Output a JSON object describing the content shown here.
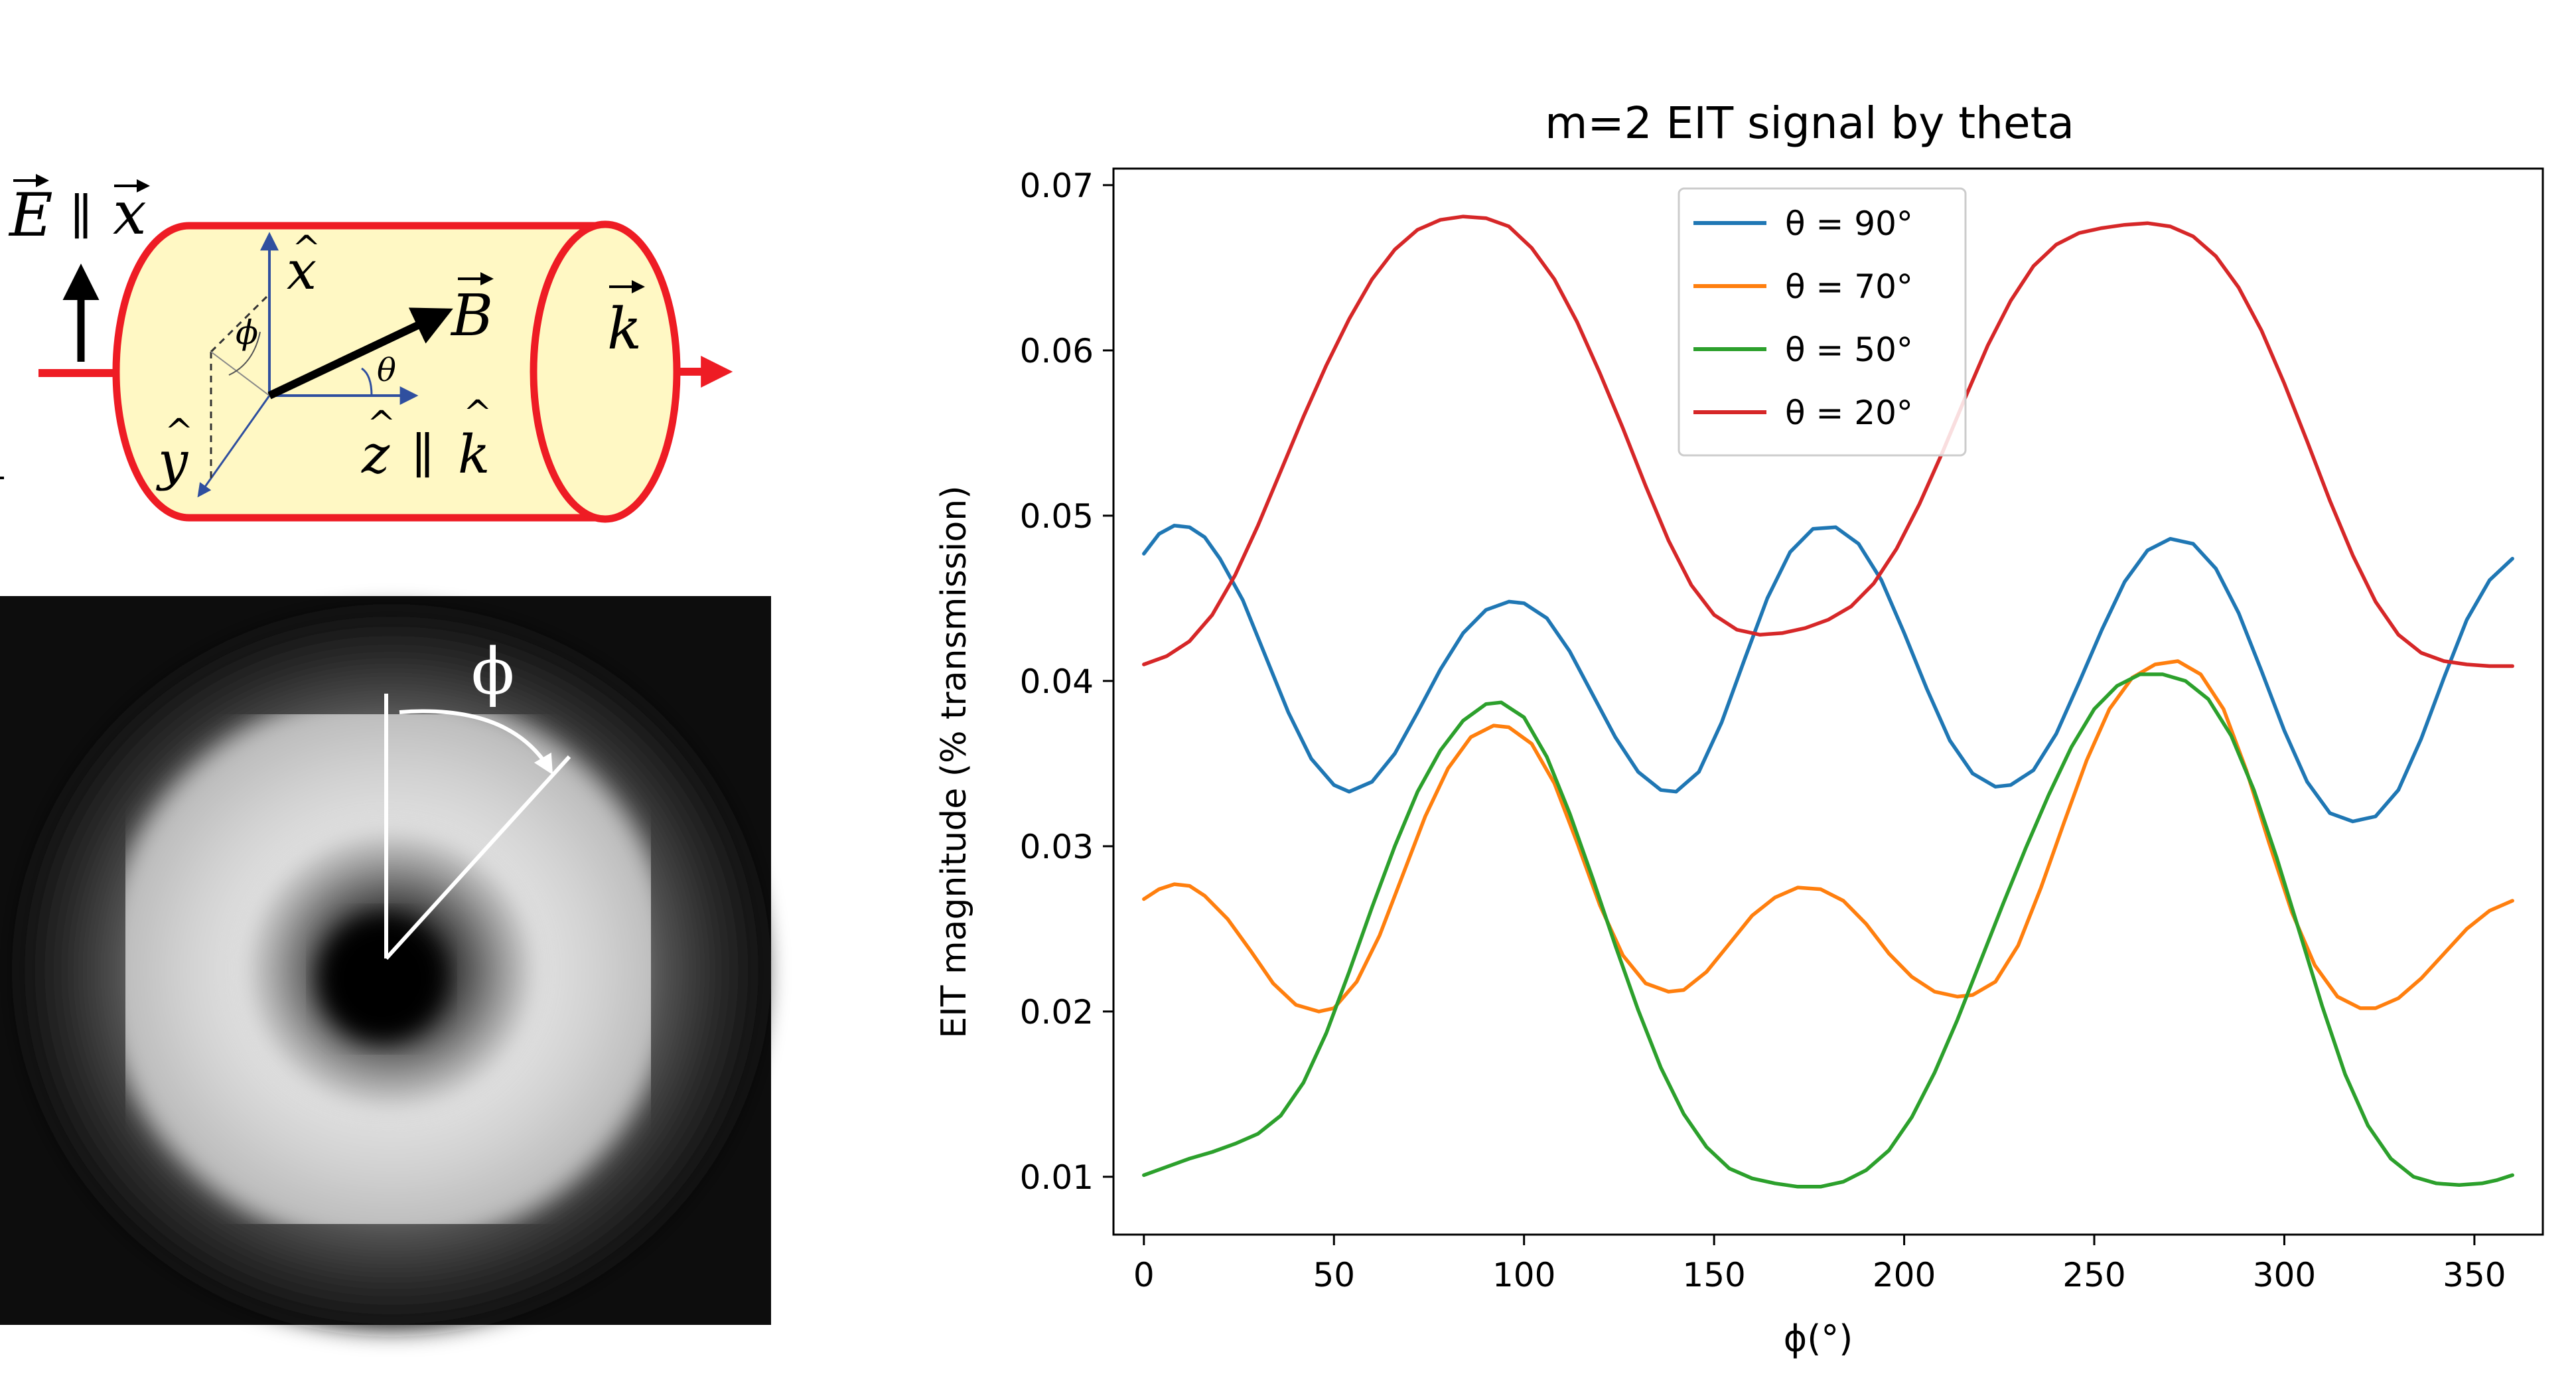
{
  "diagram": {
    "e_label": "E",
    "parallel": "∥",
    "x_label": "x",
    "x_hat": "x",
    "y_hat": "y",
    "z_hat": "z",
    "k_hat": "k",
    "b_label": "B",
    "k_label": "k",
    "phi_label": "ϕ",
    "theta_label": "θ"
  },
  "beam_image": {
    "phi_label": "ϕ"
  },
  "colors": {
    "blue": "#1f77b4",
    "orange": "#ff7f0e",
    "green": "#2ca02c",
    "red": "#d62728",
    "beam_red": "#ee1c24",
    "cylinder_fill": "#fff8c4",
    "axis_blue": "#2f4f9f"
  },
  "chart_data": {
    "type": "line",
    "title": "m=2 EIT signal by theta",
    "xlabel": "ϕ(°)",
    "ylabel": "EIT magnitude (% transmission)",
    "xlim": [
      -8,
      368
    ],
    "ylim": [
      0.0065,
      0.071
    ],
    "xticks": [
      0,
      50,
      100,
      150,
      200,
      250,
      300,
      350
    ],
    "yticks": [
      0.01,
      0.02,
      0.03,
      0.04,
      0.05,
      0.06,
      0.07
    ],
    "xtick_labels": [
      "0",
      "50",
      "100",
      "150",
      "200",
      "250",
      "300",
      "350"
    ],
    "ytick_labels": [
      "0.01",
      "0.02",
      "0.03",
      "0.04",
      "0.05",
      "0.06",
      "0.07"
    ],
    "grid": false,
    "legend_position": "top-center",
    "series": [
      {
        "name": "θ = 90°",
        "color": "#1f77b4",
        "points": [
          [
            0,
            0.0477
          ],
          [
            4,
            0.0489
          ],
          [
            8,
            0.0494
          ],
          [
            12,
            0.0493
          ],
          [
            16,
            0.0487
          ],
          [
            20,
            0.0474
          ],
          [
            26,
            0.0449
          ],
          [
            32,
            0.0415
          ],
          [
            38,
            0.0381
          ],
          [
            44,
            0.0353
          ],
          [
            50,
            0.0337
          ],
          [
            54,
            0.0333
          ],
          [
            60,
            0.0339
          ],
          [
            66,
            0.0356
          ],
          [
            72,
            0.0381
          ],
          [
            78,
            0.0407
          ],
          [
            84,
            0.0429
          ],
          [
            90,
            0.0443
          ],
          [
            96,
            0.0448
          ],
          [
            100,
            0.0447
          ],
          [
            106,
            0.0438
          ],
          [
            112,
            0.0418
          ],
          [
            118,
            0.0392
          ],
          [
            124,
            0.0366
          ],
          [
            130,
            0.0345
          ],
          [
            136,
            0.0334
          ],
          [
            140,
            0.0333
          ],
          [
            146,
            0.0345
          ],
          [
            152,
            0.0375
          ],
          [
            158,
            0.0413
          ],
          [
            164,
            0.045
          ],
          [
            170,
            0.0478
          ],
          [
            176,
            0.0492
          ],
          [
            182,
            0.0493
          ],
          [
            188,
            0.0483
          ],
          [
            194,
            0.0461
          ],
          [
            200,
            0.0429
          ],
          [
            206,
            0.0395
          ],
          [
            212,
            0.0364
          ],
          [
            218,
            0.0344
          ],
          [
            224,
            0.0336
          ],
          [
            228,
            0.0337
          ],
          [
            234,
            0.0346
          ],
          [
            240,
            0.0368
          ],
          [
            246,
            0.0399
          ],
          [
            252,
            0.0431
          ],
          [
            258,
            0.046
          ],
          [
            264,
            0.0479
          ],
          [
            270,
            0.0486
          ],
          [
            276,
            0.0483
          ],
          [
            282,
            0.0468
          ],
          [
            288,
            0.0441
          ],
          [
            294,
            0.0406
          ],
          [
            300,
            0.037
          ],
          [
            306,
            0.0339
          ],
          [
            312,
            0.032
          ],
          [
            318,
            0.0315
          ],
          [
            324,
            0.0318
          ],
          [
            330,
            0.0334
          ],
          [
            336,
            0.0365
          ],
          [
            342,
            0.0402
          ],
          [
            348,
            0.0437
          ],
          [
            354,
            0.0461
          ],
          [
            360,
            0.0474
          ]
        ]
      },
      {
        "name": "θ = 70°",
        "color": "#ff7f0e",
        "points": [
          [
            0,
            0.0268
          ],
          [
            4,
            0.0274
          ],
          [
            8,
            0.0277
          ],
          [
            12,
            0.0276
          ],
          [
            16,
            0.027
          ],
          [
            22,
            0.0256
          ],
          [
            28,
            0.0237
          ],
          [
            34,
            0.0217
          ],
          [
            40,
            0.0204
          ],
          [
            46,
            0.02
          ],
          [
            50,
            0.0202
          ],
          [
            56,
            0.0218
          ],
          [
            62,
            0.0246
          ],
          [
            68,
            0.0282
          ],
          [
            74,
            0.0318
          ],
          [
            80,
            0.0347
          ],
          [
            86,
            0.0366
          ],
          [
            92,
            0.0373
          ],
          [
            96,
            0.0372
          ],
          [
            102,
            0.0362
          ],
          [
            108,
            0.0338
          ],
          [
            114,
            0.0302
          ],
          [
            120,
            0.0264
          ],
          [
            126,
            0.0234
          ],
          [
            132,
            0.0217
          ],
          [
            138,
            0.0212
          ],
          [
            142,
            0.0213
          ],
          [
            148,
            0.0224
          ],
          [
            154,
            0.0241
          ],
          [
            160,
            0.0258
          ],
          [
            166,
            0.0269
          ],
          [
            172,
            0.0275
          ],
          [
            178,
            0.0274
          ],
          [
            184,
            0.0267
          ],
          [
            190,
            0.0253
          ],
          [
            196,
            0.0235
          ],
          [
            202,
            0.0221
          ],
          [
            208,
            0.0212
          ],
          [
            214,
            0.0209
          ],
          [
            218,
            0.021
          ],
          [
            224,
            0.0218
          ],
          [
            230,
            0.024
          ],
          [
            236,
            0.0275
          ],
          [
            242,
            0.0314
          ],
          [
            248,
            0.0352
          ],
          [
            254,
            0.0383
          ],
          [
            260,
            0.0402
          ],
          [
            266,
            0.041
          ],
          [
            272,
            0.0412
          ],
          [
            278,
            0.0404
          ],
          [
            284,
            0.0383
          ],
          [
            290,
            0.0346
          ],
          [
            296,
            0.0302
          ],
          [
            302,
            0.026
          ],
          [
            308,
            0.0228
          ],
          [
            314,
            0.0209
          ],
          [
            320,
            0.0202
          ],
          [
            324,
            0.0202
          ],
          [
            330,
            0.0208
          ],
          [
            336,
            0.022
          ],
          [
            342,
            0.0235
          ],
          [
            348,
            0.025
          ],
          [
            354,
            0.0261
          ],
          [
            360,
            0.0267
          ]
        ]
      },
      {
        "name": "θ = 50°",
        "color": "#2ca02c",
        "points": [
          [
            0,
            0.0101
          ],
          [
            6,
            0.0106
          ],
          [
            12,
            0.0111
          ],
          [
            18,
            0.0115
          ],
          [
            24,
            0.012
          ],
          [
            30,
            0.0126
          ],
          [
            36,
            0.0137
          ],
          [
            42,
            0.0157
          ],
          [
            48,
            0.0187
          ],
          [
            54,
            0.0224
          ],
          [
            60,
            0.0263
          ],
          [
            66,
            0.03
          ],
          [
            72,
            0.0333
          ],
          [
            78,
            0.0358
          ],
          [
            84,
            0.0376
          ],
          [
            90,
            0.0386
          ],
          [
            94,
            0.0387
          ],
          [
            100,
            0.0378
          ],
          [
            106,
            0.0354
          ],
          [
            112,
            0.032
          ],
          [
            118,
            0.0281
          ],
          [
            124,
            0.024
          ],
          [
            130,
            0.0201
          ],
          [
            136,
            0.0166
          ],
          [
            142,
            0.0138
          ],
          [
            148,
            0.0118
          ],
          [
            154,
            0.0105
          ],
          [
            160,
            0.0099
          ],
          [
            166,
            0.0096
          ],
          [
            172,
            0.0094
          ],
          [
            178,
            0.0094
          ],
          [
            184,
            0.0097
          ],
          [
            190,
            0.0104
          ],
          [
            196,
            0.0116
          ],
          [
            202,
            0.0136
          ],
          [
            208,
            0.0163
          ],
          [
            214,
            0.0195
          ],
          [
            220,
            0.023
          ],
          [
            226,
            0.0265
          ],
          [
            232,
            0.0299
          ],
          [
            238,
            0.0331
          ],
          [
            244,
            0.036
          ],
          [
            250,
            0.0383
          ],
          [
            256,
            0.0397
          ],
          [
            262,
            0.0404
          ],
          [
            268,
            0.0404
          ],
          [
            274,
            0.04
          ],
          [
            280,
            0.0389
          ],
          [
            286,
            0.0367
          ],
          [
            292,
            0.0334
          ],
          [
            298,
            0.0293
          ],
          [
            304,
            0.0248
          ],
          [
            310,
            0.0203
          ],
          [
            316,
            0.0162
          ],
          [
            322,
            0.0131
          ],
          [
            328,
            0.0111
          ],
          [
            334,
            0.01
          ],
          [
            340,
            0.0096
          ],
          [
            346,
            0.0095
          ],
          [
            352,
            0.0096
          ],
          [
            356,
            0.0098
          ],
          [
            360,
            0.0101
          ]
        ]
      },
      {
        "name": "θ = 20°",
        "color": "#d62728",
        "points": [
          [
            0,
            0.041
          ],
          [
            6,
            0.0415
          ],
          [
            12,
            0.0424
          ],
          [
            18,
            0.044
          ],
          [
            24,
            0.0464
          ],
          [
            30,
            0.0494
          ],
          [
            36,
            0.0527
          ],
          [
            42,
            0.056
          ],
          [
            48,
            0.0591
          ],
          [
            54,
            0.0619
          ],
          [
            60,
            0.0643
          ],
          [
            66,
            0.0661
          ],
          [
            72,
            0.0673
          ],
          [
            78,
            0.0679
          ],
          [
            84,
            0.0681
          ],
          [
            90,
            0.068
          ],
          [
            96,
            0.0675
          ],
          [
            102,
            0.0662
          ],
          [
            108,
            0.0643
          ],
          [
            114,
            0.0617
          ],
          [
            120,
            0.0586
          ],
          [
            126,
            0.0553
          ],
          [
            132,
            0.0518
          ],
          [
            138,
            0.0485
          ],
          [
            144,
            0.0458
          ],
          [
            150,
            0.044
          ],
          [
            156,
            0.0431
          ],
          [
            162,
            0.0428
          ],
          [
            168,
            0.0429
          ],
          [
            174,
            0.0432
          ],
          [
            180,
            0.0437
          ],
          [
            186,
            0.0445
          ],
          [
            192,
            0.0459
          ],
          [
            198,
            0.048
          ],
          [
            204,
            0.0507
          ],
          [
            210,
            0.0538
          ],
          [
            216,
            0.0571
          ],
          [
            222,
            0.0603
          ],
          [
            228,
            0.063
          ],
          [
            234,
            0.0651
          ],
          [
            240,
            0.0664
          ],
          [
            246,
            0.0671
          ],
          [
            252,
            0.0674
          ],
          [
            258,
            0.0676
          ],
          [
            264,
            0.0677
          ],
          [
            270,
            0.0675
          ],
          [
            276,
            0.0669
          ],
          [
            282,
            0.0657
          ],
          [
            288,
            0.0638
          ],
          [
            294,
            0.0612
          ],
          [
            300,
            0.058
          ],
          [
            306,
            0.0545
          ],
          [
            312,
            0.0509
          ],
          [
            318,
            0.0476
          ],
          [
            324,
            0.0448
          ],
          [
            330,
            0.0428
          ],
          [
            336,
            0.0417
          ],
          [
            342,
            0.0412
          ],
          [
            348,
            0.041
          ],
          [
            354,
            0.0409
          ],
          [
            360,
            0.0409
          ]
        ]
      }
    ]
  }
}
